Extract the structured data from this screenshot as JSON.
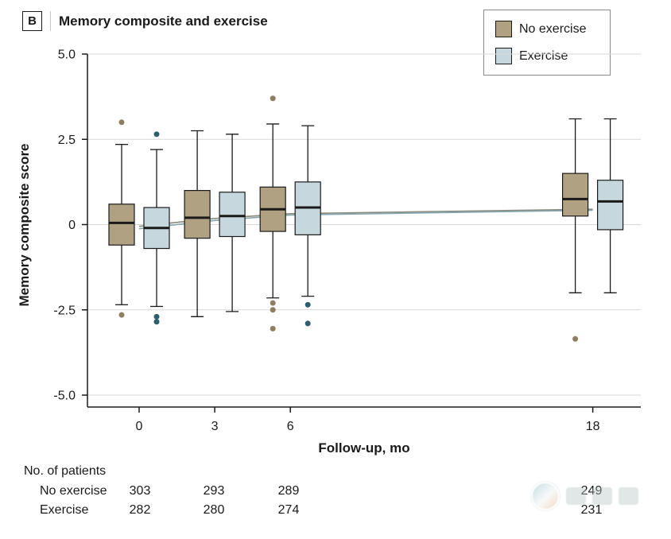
{
  "panel": {
    "label": "B",
    "title": "Memory composite and exercise"
  },
  "legend": {
    "items": [
      {
        "label": "No exercise",
        "color": "#b1a183"
      },
      {
        "label": "Exercise",
        "color": "#c6d8de"
      }
    ]
  },
  "colors": {
    "no_exercise_fill": "#b1a183",
    "exercise_fill": "#c6d8de",
    "no_exercise_outlier": "#8d7e60",
    "exercise_outlier": "#2d5f6d",
    "no_exercise_trend": "#8b8b7e",
    "exercise_trend": "#84a7b0",
    "box_stroke": "#1a1a1a",
    "gridline": "#d9d9d9",
    "axis": "#1a1a1a"
  },
  "chart_data": {
    "type": "boxplot",
    "title": "Memory composite and exercise",
    "xlabel": "Follow-up, mo",
    "ylabel": "Memory composite score",
    "x_ticks": [
      0,
      3,
      6,
      18
    ],
    "y_ticks": [
      5.0,
      2.5,
      0,
      -2.5,
      -5.0
    ],
    "ylim": [
      -5.0,
      5.0
    ],
    "grid": true,
    "legend_position": "top-right",
    "series": [
      {
        "name": "No exercise",
        "boxes": [
          {
            "x": 0,
            "whisker_low": -2.35,
            "q1": -0.6,
            "median": 0.05,
            "q3": 0.6,
            "whisker_high": 2.35,
            "outliers": [
              3.0,
              -2.65
            ]
          },
          {
            "x": 3,
            "whisker_low": -2.7,
            "q1": -0.4,
            "median": 0.2,
            "q3": 1.0,
            "whisker_high": 2.75,
            "outliers": []
          },
          {
            "x": 6,
            "whisker_low": -2.15,
            "q1": -0.2,
            "median": 0.45,
            "q3": 1.1,
            "whisker_high": 2.95,
            "outliers": [
              3.7,
              -2.3,
              -2.5,
              -3.05
            ]
          },
          {
            "x": 18,
            "whisker_low": -2.0,
            "q1": 0.25,
            "median": 0.75,
            "q3": 1.5,
            "whisker_high": 3.1,
            "outliers": [
              -3.35
            ]
          }
        ]
      },
      {
        "name": "Exercise",
        "boxes": [
          {
            "x": 0,
            "whisker_low": -2.4,
            "q1": -0.7,
            "median": -0.1,
            "q3": 0.5,
            "whisker_high": 2.2,
            "outliers": [
              2.65,
              -2.7,
              -2.85
            ]
          },
          {
            "x": 3,
            "whisker_low": -2.55,
            "q1": -0.35,
            "median": 0.25,
            "q3": 0.95,
            "whisker_high": 2.65,
            "outliers": []
          },
          {
            "x": 6,
            "whisker_low": -2.1,
            "q1": -0.3,
            "median": 0.5,
            "q3": 1.25,
            "whisker_high": 2.9,
            "outliers": [
              -2.35,
              -2.9
            ]
          },
          {
            "x": 18,
            "whisker_low": -2.0,
            "q1": -0.15,
            "median": 0.68,
            "q3": 1.3,
            "whisker_high": 3.1,
            "outliers": []
          }
        ]
      }
    ],
    "trend_lines": [
      {
        "name": "No exercise",
        "x": [
          0,
          3,
          6,
          18
        ],
        "y": [
          -0.05,
          0.18,
          0.32,
          0.45
        ]
      },
      {
        "name": "Exercise",
        "x": [
          0,
          3,
          6,
          18
        ],
        "y": [
          -0.12,
          0.12,
          0.28,
          0.42
        ]
      }
    ]
  },
  "patients": {
    "title": "No. of patients",
    "rows": [
      {
        "label": "No exercise",
        "values": [
          "303",
          "293",
          "289",
          "249"
        ]
      },
      {
        "label": "Exercise",
        "values": [
          "282",
          "280",
          "274",
          "231"
        ]
      }
    ]
  }
}
